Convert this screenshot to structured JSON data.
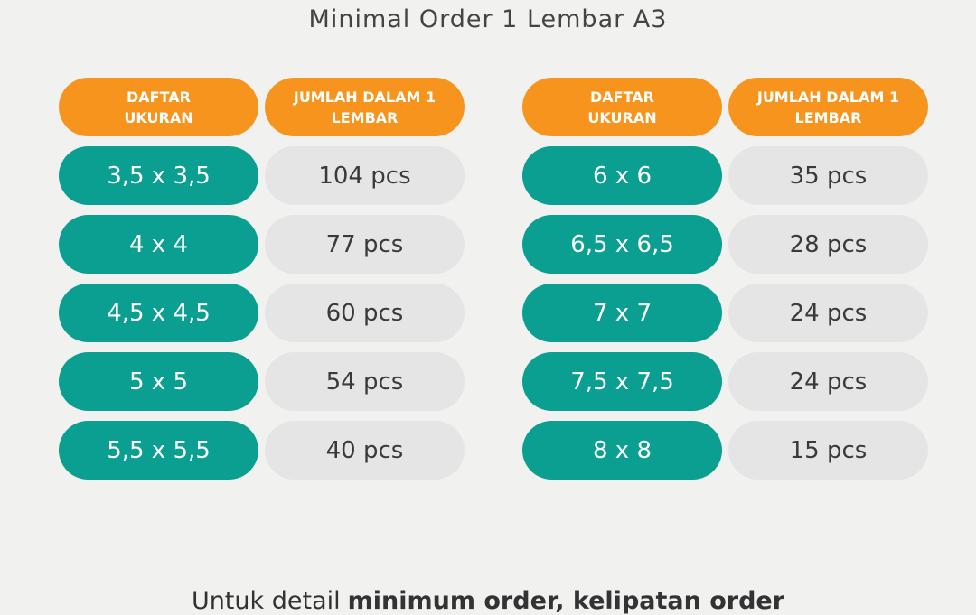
{
  "header": {
    "subtitle": "Minimal Order 1 Lembar A3"
  },
  "tables": [
    {
      "headers": [
        "DAFTAR UKURAN",
        "JUMLAH DALAM 1 LEMBAR"
      ],
      "rows": [
        [
          "3,5 x 3,5",
          "104 pcs"
        ],
        [
          "4 x 4",
          "77 pcs"
        ],
        [
          "4,5 x 4,5",
          "60 pcs"
        ],
        [
          "5 x 5",
          "54 pcs"
        ],
        [
          "5,5 x 5,5",
          "40 pcs"
        ]
      ]
    },
    {
      "headers": [
        "DAFTAR UKURAN",
        "JUMLAH DALAM 1 LEMBAR"
      ],
      "rows": [
        [
          "6 x 6",
          "35 pcs"
        ],
        [
          "6,5 x 6,5",
          "28 pcs"
        ],
        [
          "7 x 7",
          "24 pcs"
        ],
        [
          "7,5 x 7,5",
          "24 pcs"
        ],
        [
          "8 x 8",
          "15 pcs"
        ]
      ]
    }
  ],
  "footer": {
    "text": "Untuk detail",
    "bold": "minimum order, kelipatan order"
  }
}
